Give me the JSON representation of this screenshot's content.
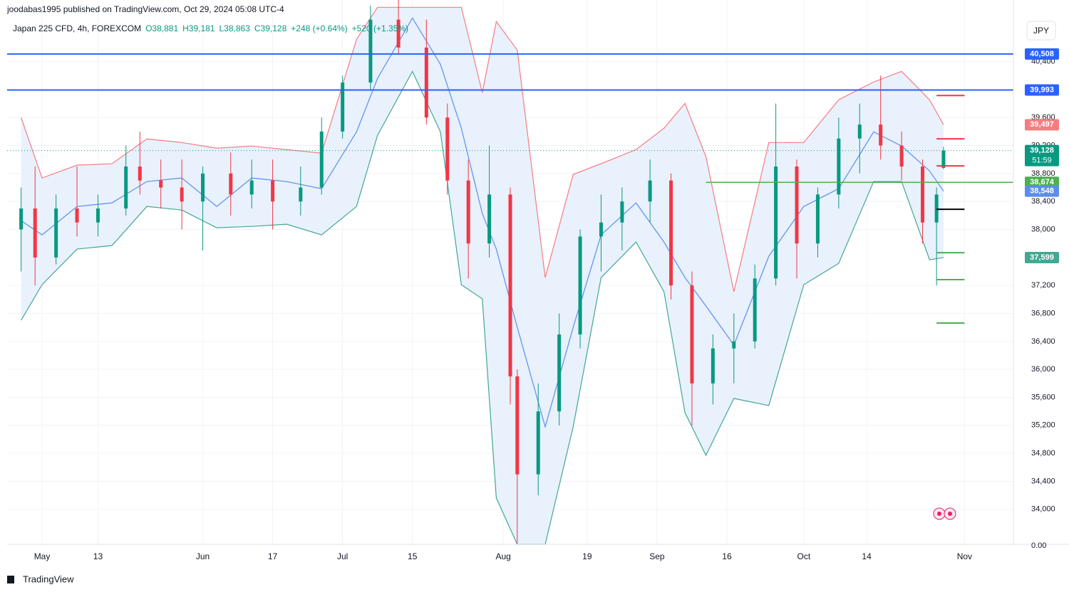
{
  "header": {
    "publisher": "joodabas1995 published on TradingView.com, Oct 29, 2024 05:08 UTC-4",
    "currency": "JPY",
    "brand": "TradingView"
  },
  "chart_data": {
    "type": "candlestick",
    "title": "Japan 225 CFD, 4h, FOREXCOM",
    "ohlc_labels": [
      "O38,881",
      "H39,181",
      "L38,863",
      "C39,128",
      "+248 (+0.64%)",
      "+520 (+1.35%)"
    ],
    "x": [
      "2024-04-26",
      "2024-04-30",
      "2024-05-03",
      "2024-05-08",
      "2024-05-13",
      "2024-05-17",
      "2024-05-21",
      "2024-05-24",
      "2024-05-29",
      "2024-06-03",
      "2024-06-07",
      "2024-06-12",
      "2024-06-17",
      "2024-06-21",
      "2024-06-26",
      "2024-07-01",
      "2024-07-05",
      "2024-07-11",
      "2024-07-17",
      "2024-07-22",
      "2024-07-25",
      "2024-07-30",
      "2024-08-02",
      "2024-08-05",
      "2024-08-08",
      "2024-08-13",
      "2024-08-16",
      "2024-08-21",
      "2024-08-26",
      "2024-08-30",
      "2024-09-04",
      "2024-09-09",
      "2024-09-12",
      "2024-09-17",
      "2024-09-20",
      "2024-09-25",
      "2024-09-30",
      "2024-10-03",
      "2024-10-08",
      "2024-10-11",
      "2024-10-16",
      "2024-10-21",
      "2024-10-24",
      "2024-10-28",
      "2024-10-29"
    ],
    "open": [
      38000,
      38300,
      37600,
      38300,
      38100,
      38300,
      38900,
      38700,
      38600,
      38400,
      38800,
      38500,
      38700,
      38400,
      38600,
      39400,
      40100,
      41000,
      40600,
      39600,
      38700,
      37800,
      38500,
      35900,
      34500,
      35400,
      36500,
      37900,
      38100,
      38400,
      38700,
      37200,
      35800,
      36300,
      36400,
      37300,
      38900,
      37800,
      38500,
      39300,
      39500,
      39200,
      38900,
      38100,
      38881
    ],
    "high": [
      38600,
      38900,
      38500,
      38900,
      38500,
      39200,
      39400,
      39000,
      39000,
      38900,
      39100,
      39000,
      39000,
      38900,
      39600,
      40200,
      41200,
      41500,
      41000,
      39800,
      39000,
      39200,
      38600,
      36000,
      35800,
      36800,
      38000,
      38500,
      38600,
      39000,
      38800,
      37400,
      36500,
      36800,
      37500,
      39800,
      39000,
      38600,
      39600,
      39800,
      40200,
      39400,
      39000,
      38600,
      39181
    ],
    "low": [
      37400,
      37200,
      37500,
      37900,
      37900,
      38200,
      38500,
      38300,
      38000,
      37700,
      38200,
      38300,
      38000,
      38200,
      38500,
      39300,
      40000,
      40500,
      39500,
      38500,
      37300,
      37600,
      35500,
      33500,
      34200,
      35200,
      36300,
      37400,
      37700,
      38100,
      37000,
      35200,
      35500,
      35800,
      36300,
      37200,
      37300,
      37600,
      38300,
      38800,
      39000,
      38700,
      37800,
      37200,
      38863
    ],
    "close": [
      38300,
      37600,
      38300,
      38100,
      38300,
      38900,
      38700,
      38600,
      38400,
      38800,
      38500,
      38700,
      38400,
      38600,
      39400,
      40100,
      41000,
      40600,
      39600,
      38700,
      37800,
      38500,
      35900,
      34500,
      35400,
      36500,
      37900,
      38100,
      38400,
      38700,
      37200,
      35800,
      36300,
      36400,
      37300,
      38900,
      37800,
      38500,
      39300,
      39500,
      39200,
      38900,
      38100,
      38500,
      39128
    ],
    "up_color": "#089981",
    "down_color": "#f23645",
    "bands": {
      "x": [
        "2024-04-26",
        "2024-05-01",
        "2024-05-08",
        "2024-05-15",
        "2024-05-22",
        "2024-05-29",
        "2024-06-05",
        "2024-06-12",
        "2024-06-19",
        "2024-06-26",
        "2024-07-03",
        "2024-07-08",
        "2024-07-15",
        "2024-07-19",
        "2024-07-24",
        "2024-07-29",
        "2024-07-31",
        "2024-08-05",
        "2024-08-09",
        "2024-08-15",
        "2024-08-21",
        "2024-08-28",
        "2024-09-03",
        "2024-09-06",
        "2024-09-11",
        "2024-09-17",
        "2024-09-24",
        "2024-10-01",
        "2024-10-08",
        "2024-10-15",
        "2024-10-21",
        "2024-10-25",
        "2024-10-29"
      ],
      "series": [
        {
          "name": "Upper",
          "color": "#f77c80",
          "values": [
            39600,
            38736,
            38919,
            38940,
            39294,
            39243,
            39162,
            39192,
            39142,
            39091,
            40717,
            41175,
            41175,
            41175,
            41175,
            39955,
            40972,
            40565,
            37313,
            38787,
            38940,
            39142,
            39447,
            39803,
            39041,
            37110,
            39243,
            39243,
            39854,
            40108,
            40260,
            39854,
            39497
          ],
          "last_label": "39,497"
        },
        {
          "name": "Basis",
          "color": "#5b8def",
          "values": [
            38126,
            37923,
            38329,
            38380,
            38685,
            38736,
            38329,
            38736,
            38685,
            38583,
            39396,
            40159,
            41022,
            40362,
            39447,
            38228,
            37720,
            36602,
            35179,
            36602,
            37923,
            38380,
            37820,
            37313,
            36907,
            36348,
            37618,
            38329,
            38583,
            39396,
            39193,
            38837,
            38548
          ],
          "last_label": "38,548"
        },
        {
          "name": "Lower",
          "color": "#42a891",
          "values": [
            36703,
            37211,
            37720,
            37770,
            38329,
            38278,
            38024,
            38044,
            38075,
            37923,
            38329,
            39345,
            40260,
            39396,
            37211,
            37008,
            34163,
            33500,
            33500,
            35179,
            37313,
            37821,
            37110,
            35382,
            34772,
            35585,
            35484,
            37211,
            37516,
            38685,
            38685,
            37567,
            37599
          ],
          "last_label": "37,599"
        }
      ],
      "fill": "#e8f1fc"
    },
    "levels": [
      {
        "value": 40508,
        "label": "40,508",
        "color": "#2962ff",
        "start": null
      },
      {
        "value": 39993,
        "label": "39,993",
        "color": "#2962ff",
        "start": null
      },
      {
        "value": 38674,
        "label": "38,674",
        "color": "#4caf50",
        "start": "2024-09-11"
      }
    ],
    "last_price": {
      "value": 39128,
      "label": "39,128",
      "countdown": "51:59",
      "color": "#089981"
    },
    "targets": {
      "range": [
        "2024-10-28",
        "2024-11-01"
      ],
      "items": [
        {
          "value": 39915,
          "color": "#f23645"
        },
        {
          "value": 39295,
          "color": "#f23645"
        },
        {
          "value": 38909,
          "color": "#f23645"
        },
        {
          "value": 38289,
          "color": "#000000"
        },
        {
          "value": 37669,
          "color": "#4caf50"
        },
        {
          "value": 37283,
          "color": "#4caf50"
        },
        {
          "value": 36663,
          "color": "#4caf50"
        }
      ]
    },
    "xlim": [
      "2024-04-24",
      "2024-11-12"
    ],
    "xticks": [
      {
        "value": "2024-05-01",
        "label": "May"
      },
      {
        "value": "2024-05-13",
        "label": "13"
      },
      {
        "value": "2024-06-03",
        "label": "Jun"
      },
      {
        "value": "2024-06-17",
        "label": "17"
      },
      {
        "value": "2024-07-01",
        "label": "Jul"
      },
      {
        "value": "2024-07-15",
        "label": "15"
      },
      {
        "value": "2024-08-01",
        "label": "Aug"
      },
      {
        "value": "2024-08-19",
        "label": "19"
      },
      {
        "value": "2024-09-02",
        "label": "Sep"
      },
      {
        "value": "2024-09-16",
        "label": "16"
      },
      {
        "value": "2024-10-01",
        "label": "Oct"
      },
      {
        "value": "2024-10-14",
        "label": "14"
      },
      {
        "value": "2024-11-01",
        "label": "Nov"
      }
    ],
    "ylim": [
      33500,
      41280
    ],
    "yticks": [
      {
        "value": 34000,
        "label": "34,000"
      },
      {
        "value": 34400,
        "label": "34,400"
      },
      {
        "value": 34800,
        "label": "34,800"
      },
      {
        "value": 35200,
        "label": "35,200"
      },
      {
        "value": 35600,
        "label": "35,600"
      },
      {
        "value": 36000,
        "label": "36,000"
      },
      {
        "value": 36400,
        "label": "36,400"
      },
      {
        "value": 36800,
        "label": "36,800"
      },
      {
        "value": 37200,
        "label": "37,200"
      },
      {
        "value": 38000,
        "label": "38,000"
      },
      {
        "value": 38400,
        "label": "38,400"
      },
      {
        "value": 38800,
        "label": "38,800"
      },
      {
        "value": 39200,
        "label": "39,200"
      },
      {
        "value": 39600,
        "label": "39,600"
      },
      {
        "value": 40400,
        "label": "40,400"
      }
    ],
    "axis_bottom_label": "0.00",
    "grid": true
  }
}
